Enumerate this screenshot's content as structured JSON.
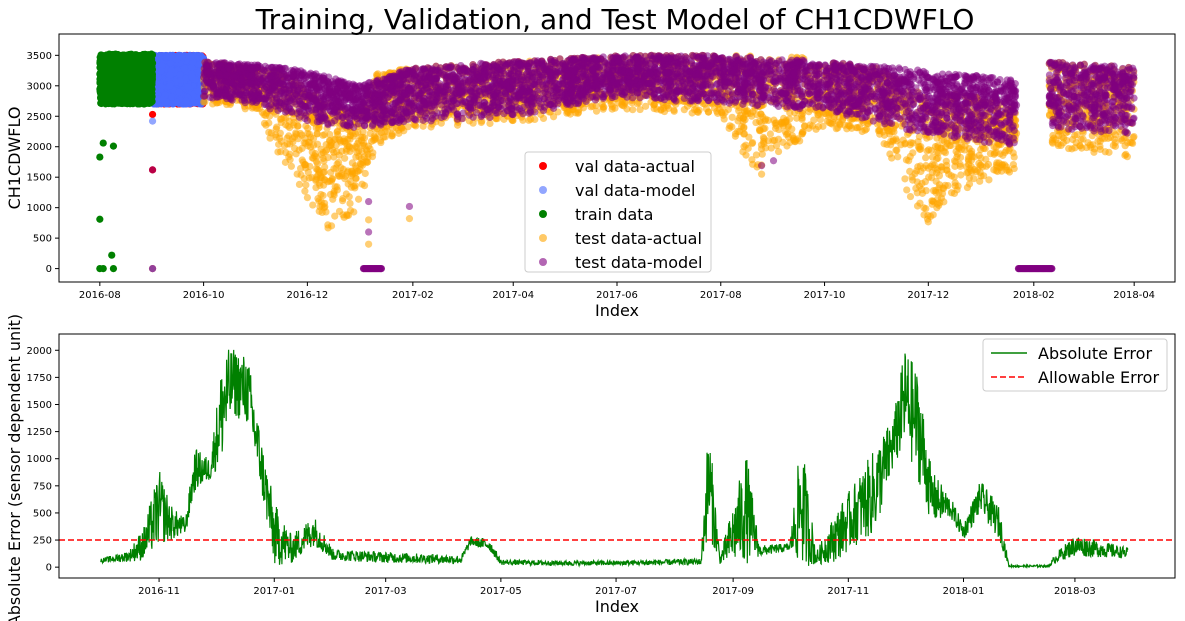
{
  "chart_data": [
    {
      "type": "scatter",
      "title": "Training, Validation, and Test Model of CH1CDWFLO",
      "xlabel": "Index",
      "ylabel": "CH1CDWFLO",
      "x_range": [
        "2016-07-08",
        "2018-04-25"
      ],
      "ylim": [
        -220,
        3850
      ],
      "x_ticks": [
        "2016-08",
        "2016-10",
        "2016-12",
        "2017-02",
        "2017-04",
        "2017-06",
        "2017-08",
        "2017-10",
        "2017-12",
        "2018-02",
        "2018-04"
      ],
      "y_ticks": [
        0,
        500,
        1000,
        1500,
        2000,
        2500,
        3000,
        3500
      ],
      "grid": false,
      "legend_position": "lower-center",
      "series": [
        {
          "name": "val data-actual",
          "color": "#ff0000",
          "bands": [
            {
              "x0": "2016-09-01",
              "x1": "2016-10-01",
              "y0": 2700,
              "y1": 3500
            }
          ],
          "points": [
            {
              "x": "2016-09-01",
              "y": 2530
            },
            {
              "x": "2016-09-01",
              "y": 1620
            },
            {
              "x": "2016-09-01",
              "y": 0
            }
          ]
        },
        {
          "name": "val data-model",
          "color": "#4a6bff",
          "bands": [
            {
              "x0": "2016-09-01",
              "x1": "2016-10-01",
              "y0": 2700,
              "y1": 3500
            }
          ],
          "points": [
            {
              "x": "2016-09-01",
              "y": 2420
            },
            {
              "x": "2016-09-01",
              "y": 0
            }
          ]
        },
        {
          "name": "train data",
          "color": "#008000",
          "bands": [
            {
              "x0": "2016-08-01",
              "x1": "2016-09-01",
              "y0": 2700,
              "y1": 3520
            }
          ],
          "points": [
            {
              "x": "2016-08-01",
              "y": 1830
            },
            {
              "x": "2016-08-03",
              "y": 2060
            },
            {
              "x": "2016-08-09",
              "y": 2010
            },
            {
              "x": "2016-08-01",
              "y": 810
            },
            {
              "x": "2016-08-08",
              "y": 220
            },
            {
              "x": "2016-08-01",
              "y": 0
            },
            {
              "x": "2016-08-03",
              "y": 0
            },
            {
              "x": "2016-08-09",
              "y": 0
            }
          ]
        },
        {
          "name": "test data-actual",
          "color": "#ffa500",
          "profile": [
            [
              "2016-10-01",
              2700,
              3400
            ],
            [
              "2016-11-01",
              2600,
              3300
            ],
            [
              "2016-11-15",
              1800,
              3200
            ],
            [
              "2016-12-01",
              1100,
              3000
            ],
            [
              "2016-12-15",
              600,
              2700
            ],
            [
              "2017-01-01",
              1000,
              2500
            ],
            [
              "2017-01-10",
              2000,
              3200
            ],
            [
              "2017-02-01",
              2300,
              3300
            ],
            [
              "2017-04-01",
              2400,
              3400
            ],
            [
              "2017-06-01",
              2600,
              3500
            ],
            [
              "2017-08-01",
              2500,
              3500
            ],
            [
              "2017-08-20",
              1600,
              3500
            ],
            [
              "2017-09-10",
              2000,
              3500
            ],
            [
              "2017-10-01",
              2300,
              3400
            ],
            [
              "2017-11-01",
              2200,
              3300
            ],
            [
              "2017-11-20",
              1200,
              3000
            ],
            [
              "2017-12-01",
              700,
              2800
            ],
            [
              "2017-12-15",
              1200,
              2900
            ],
            [
              "2018-01-01",
              1400,
              2800
            ],
            [
              "2018-01-22",
              1600,
              2600
            ],
            [
              "2018-02-10",
              2000,
              3400
            ],
            [
              "2018-04-01",
              1800,
              3300
            ]
          ],
          "points": [
            {
              "x": "2016-12-27",
              "y": 1600
            },
            {
              "x": "2017-01-06",
              "y": 400
            },
            {
              "x": "2017-01-06",
              "y": 800
            },
            {
              "x": "2017-01-30",
              "y": 820
            },
            {
              "x": "2017-08-25",
              "y": 1550
            },
            {
              "x": "2017-08-25",
              "y": 1700
            }
          ]
        },
        {
          "name": "test data-model",
          "color": "#800080",
          "profile": [
            [
              "2016-10-01",
              2800,
              3400
            ],
            [
              "2016-11-01",
              2700,
              3350
            ],
            [
              "2016-12-01",
              2400,
              3250
            ],
            [
              "2017-01-01",
              2300,
              3000
            ],
            [
              "2017-02-01",
              2400,
              3300
            ],
            [
              "2017-04-01",
              2500,
              3400
            ],
            [
              "2017-06-01",
              2800,
              3500
            ],
            [
              "2017-08-01",
              2700,
              3500
            ],
            [
              "2017-10-01",
              2600,
              3400
            ],
            [
              "2017-12-01",
              2200,
              3250
            ],
            [
              "2018-01-22",
              2000,
              3100
            ],
            [
              "2018-02-10",
              2300,
              3400
            ],
            [
              "2018-04-01",
              2200,
              3300
            ]
          ],
          "points": [
            {
              "x": "2017-01-06",
              "y": 1100
            },
            {
              "x": "2017-01-06",
              "y": 600
            },
            {
              "x": "2017-01-30",
              "y": 1020
            },
            {
              "x": "2016-09-01",
              "y": 1620
            },
            {
              "x": "2017-09-01",
              "y": 1770
            },
            {
              "x": "2017-08-25",
              "y": 1690
            }
          ],
          "zero_segments": [
            {
              "x0": "2017-01-03",
              "x1": "2017-01-14",
              "y": 0
            },
            {
              "x0": "2018-01-23",
              "x1": "2018-02-12",
              "y": 0
            }
          ]
        }
      ]
    },
    {
      "type": "line",
      "xlabel": "Index",
      "ylabel": "Absolute Error (sensor dependent unit)",
      "x_range": [
        "2016-09-09",
        "2018-04-23"
      ],
      "ylim": [
        -100,
        2150
      ],
      "x_ticks": [
        "2016-11",
        "2017-01",
        "2017-03",
        "2017-05",
        "2017-07",
        "2017-09",
        "2017-11",
        "2018-01",
        "2018-03"
      ],
      "y_ticks": [
        0,
        250,
        500,
        750,
        1000,
        1250,
        1500,
        1750,
        2000
      ],
      "grid": false,
      "legend_position": "top-right",
      "series": [
        {
          "name": "Absolute Error",
          "color": "#008000",
          "style": "solid",
          "profile": [
            [
              "2016-10-01",
              40,
              80
            ],
            [
              "2016-10-16",
              50,
              150
            ],
            [
              "2016-10-24",
              60,
              380
            ],
            [
              "2016-11-01",
              200,
              900
            ],
            [
              "2016-11-08",
              250,
              550
            ],
            [
              "2016-11-15",
              300,
              450
            ],
            [
              "2016-11-20",
              700,
              1100
            ],
            [
              "2016-11-28",
              800,
              1000
            ],
            [
              "2016-12-05",
              1000,
              2000
            ],
            [
              "2016-12-10",
              1400,
              2020
            ],
            [
              "2016-12-18",
              1300,
              1950
            ],
            [
              "2016-12-25",
              700,
              1200
            ],
            [
              "2017-01-01",
              0,
              600
            ],
            [
              "2017-01-10",
              30,
              300
            ],
            [
              "2017-01-22",
              200,
              480
            ],
            [
              "2017-02-01",
              60,
              170
            ],
            [
              "2017-03-01",
              40,
              140
            ],
            [
              "2017-04-10",
              30,
              110
            ],
            [
              "2017-04-15",
              200,
              280
            ],
            [
              "2017-04-25",
              150,
              260
            ],
            [
              "2017-05-01",
              20,
              70
            ],
            [
              "2017-06-01",
              15,
              60
            ],
            [
              "2017-07-01",
              15,
              60
            ],
            [
              "2017-08-15",
              20,
              80
            ],
            [
              "2017-08-19",
              300,
              1370
            ],
            [
              "2017-08-25",
              30,
              100
            ],
            [
              "2017-09-08",
              30,
              1060
            ],
            [
              "2017-09-15",
              100,
              200
            ],
            [
              "2017-10-01",
              150,
              220
            ],
            [
              "2017-10-07",
              0,
              1220
            ],
            [
              "2017-10-15",
              20,
              140
            ],
            [
              "2017-10-25",
              50,
              500
            ],
            [
              "2017-11-05",
              200,
              800
            ],
            [
              "2017-11-15",
              300,
              1100
            ],
            [
              "2017-11-25",
              900,
              1400
            ],
            [
              "2017-12-01",
              1100,
              2030
            ],
            [
              "2017-12-08",
              800,
              1800
            ],
            [
              "2017-12-15",
              400,
              900
            ],
            [
              "2017-12-25",
              450,
              650
            ],
            [
              "2018-01-01",
              250,
              400
            ],
            [
              "2018-01-10",
              500,
              800
            ],
            [
              "2018-01-20",
              250,
              550
            ],
            [
              "2018-01-25",
              0,
              20
            ],
            [
              "2018-02-15",
              0,
              20
            ],
            [
              "2018-02-20",
              50,
              150
            ],
            [
              "2018-03-01",
              100,
              300
            ],
            [
              "2018-03-29",
              80,
              180
            ]
          ]
        },
        {
          "name": "Allowable Error",
          "color": "#ff0000",
          "style": "dashed",
          "constant": 250
        }
      ]
    }
  ]
}
